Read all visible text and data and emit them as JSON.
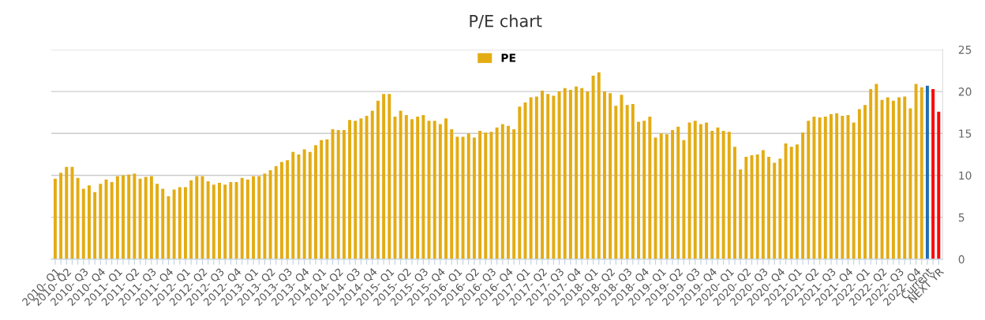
{
  "chart_data": {
    "type": "bar",
    "title": "P/E chart",
    "categories": [
      "2010- Q1",
      null,
      "2010- Q2",
      null,
      null,
      "2010- Q3",
      null,
      null,
      "2010- Q4",
      null,
      null,
      "2011- Q1",
      null,
      null,
      "2011- Q2",
      null,
      null,
      "2011- Q3",
      null,
      null,
      "2011- Q4",
      null,
      null,
      "2012- Q1",
      null,
      null,
      "2012- Q2",
      null,
      null,
      "2012- Q3",
      null,
      null,
      "2012- Q4",
      null,
      null,
      "2013- Q1",
      null,
      null,
      "2013- Q2",
      null,
      null,
      "2013- Q3",
      null,
      null,
      "2013- Q4",
      null,
      null,
      "2014- Q1",
      null,
      null,
      "2014- Q2",
      null,
      null,
      "2014- Q3",
      null,
      null,
      "2014- Q4",
      null,
      null,
      "2015- Q1",
      null,
      null,
      "2015- Q2",
      null,
      null,
      "2015- Q3",
      null,
      null,
      "2015- Q4",
      null,
      null,
      "2016- Q1",
      null,
      null,
      "2016- Q2",
      null,
      null,
      "2016- Q3",
      null,
      null,
      "2016- Q4",
      null,
      null,
      "2017- Q1",
      null,
      null,
      "2017- Q2",
      null,
      null,
      "2017- Q3",
      null,
      null,
      "2017- Q4",
      null,
      null,
      "2018- Q1",
      null,
      null,
      "2018- Q2",
      null,
      null,
      "2018- Q3",
      null,
      null,
      "2018- Q4",
      null,
      null,
      "2019- Q1",
      null,
      null,
      "2019- Q2",
      null,
      null,
      "2019- Q3",
      null,
      null,
      "2019- Q4",
      null,
      null,
      "2020- Q1",
      null,
      null,
      "2020- Q2",
      null,
      null,
      "2020- Q3",
      null,
      null,
      "2020- Q4",
      null,
      null,
      "2021- Q1",
      null,
      null,
      "2021- Q2",
      null,
      null,
      "2021- Q3",
      null,
      null,
      "2021- Q4",
      null,
      null,
      "2022- Q1",
      null,
      null,
      "2022- Q2",
      null,
      null,
      "2022- Q3",
      null,
      null,
      "2022- Q4",
      null,
      "Current",
      null,
      "NEXT YR"
    ],
    "series": [
      {
        "name": "PE",
        "color": "#e3ac13",
        "values": [
          9.6,
          10.3,
          11.0,
          11.0,
          9.7,
          8.4,
          8.8,
          8.0,
          9.0,
          9.5,
          9.2,
          9.9,
          10.0,
          10.1,
          10.2,
          9.6,
          9.8,
          9.9,
          9.0,
          8.4,
          7.5,
          8.3,
          8.6,
          8.6,
          9.4,
          9.9,
          9.9,
          9.3,
          8.9,
          9.1,
          8.9,
          9.2,
          9.2,
          9.7,
          9.5,
          9.9,
          9.9,
          10.2,
          10.6,
          11.1,
          11.6,
          11.8,
          12.8,
          12.5,
          13.1,
          12.8,
          13.6,
          14.2,
          14.3,
          15.5,
          15.4,
          15.4,
          16.6,
          16.5,
          16.8,
          17.1,
          17.7,
          18.9,
          19.7,
          19.7,
          17.0,
          17.7,
          17.2,
          16.7,
          17.0,
          17.2,
          16.5,
          16.5,
          16.1,
          16.8,
          15.5,
          14.6,
          14.6,
          15.0,
          14.5,
          15.3,
          15.1,
          15.2,
          15.7,
          16.1,
          15.9,
          15.5,
          18.2,
          18.7,
          19.3,
          19.4,
          20.1,
          19.7,
          19.5,
          20.0,
          20.4,
          20.2,
          20.6,
          20.4,
          20.0,
          21.9,
          22.3,
          20.0,
          19.8,
          18.3,
          19.6,
          18.4,
          18.5,
          16.4,
          16.5,
          17.0,
          14.5,
          15.0,
          14.9,
          15.4,
          15.8,
          14.2,
          16.3,
          16.5,
          16.1,
          16.3,
          15.3,
          15.7,
          15.3,
          15.2,
          13.4,
          10.7,
          12.2,
          12.4,
          12.5,
          13.0,
          12.2,
          11.5,
          12.0,
          13.8,
          13.4,
          13.7,
          15.1,
          16.5,
          17.0,
          16.9,
          17.0,
          17.3,
          17.4,
          17.1,
          17.2,
          16.3,
          17.9,
          18.4,
          20.3,
          20.9,
          19.0,
          19.3,
          18.9,
          19.3,
          19.4,
          18.0,
          20.9,
          20.5,
          20.7,
          20.3,
          17.6
        ],
        "colors": [
          "#e3ac13",
          "#e3ac13",
          "#e3ac13",
          "#e3ac13",
          "#e3ac13",
          "#e3ac13",
          "#e3ac13",
          "#e3ac13",
          "#e3ac13",
          "#e3ac13",
          "#e3ac13",
          "#e3ac13",
          "#e3ac13",
          "#e3ac13",
          "#e3ac13",
          "#e3ac13",
          "#e3ac13",
          "#e3ac13",
          "#e3ac13",
          "#e3ac13",
          "#e3ac13",
          "#e3ac13",
          "#e3ac13",
          "#e3ac13",
          "#e3ac13",
          "#e3ac13",
          "#e3ac13",
          "#e3ac13",
          "#e3ac13",
          "#e3ac13",
          "#e3ac13",
          "#e3ac13",
          "#e3ac13",
          "#e3ac13",
          "#e3ac13",
          "#e3ac13",
          "#e3ac13",
          "#e3ac13",
          "#e3ac13",
          "#e3ac13",
          "#e3ac13",
          "#e3ac13",
          "#e3ac13",
          "#e3ac13",
          "#e3ac13",
          "#e3ac13",
          "#e3ac13",
          "#e3ac13",
          "#e3ac13",
          "#e3ac13",
          "#e3ac13",
          "#e3ac13",
          "#e3ac13",
          "#e3ac13",
          "#e3ac13",
          "#e3ac13",
          "#e3ac13",
          "#e3ac13",
          "#e3ac13",
          "#e3ac13",
          "#e3ac13",
          "#e3ac13",
          "#e3ac13",
          "#e3ac13",
          "#e3ac13",
          "#e3ac13",
          "#e3ac13",
          "#e3ac13",
          "#e3ac13",
          "#e3ac13",
          "#e3ac13",
          "#e3ac13",
          "#e3ac13",
          "#e3ac13",
          "#e3ac13",
          "#e3ac13",
          "#e3ac13",
          "#e3ac13",
          "#e3ac13",
          "#e3ac13",
          "#e3ac13",
          "#e3ac13",
          "#e3ac13",
          "#e3ac13",
          "#e3ac13",
          "#e3ac13",
          "#e3ac13",
          "#e3ac13",
          "#e3ac13",
          "#e3ac13",
          "#e3ac13",
          "#e3ac13",
          "#e3ac13",
          "#e3ac13",
          "#e3ac13",
          "#e3ac13",
          "#e3ac13",
          "#e3ac13",
          "#e3ac13",
          "#e3ac13",
          "#e3ac13",
          "#e3ac13",
          "#e3ac13",
          "#e3ac13",
          "#e3ac13",
          "#e3ac13",
          "#e3ac13",
          "#e3ac13",
          "#e3ac13",
          "#e3ac13",
          "#e3ac13",
          "#e3ac13",
          "#e3ac13",
          "#e3ac13",
          "#e3ac13",
          "#e3ac13",
          "#e3ac13",
          "#e3ac13",
          "#e3ac13",
          "#e3ac13",
          "#e3ac13",
          "#e3ac13",
          "#e3ac13",
          "#e3ac13",
          "#e3ac13",
          "#e3ac13",
          "#e3ac13",
          "#e3ac13",
          "#e3ac13",
          "#e3ac13",
          "#e3ac13",
          "#e3ac13",
          "#e3ac13",
          "#e3ac13",
          "#e3ac13",
          "#e3ac13",
          "#e3ac13",
          "#e3ac13",
          "#e3ac13",
          "#e3ac13",
          "#e3ac13",
          "#e3ac13",
          "#e3ac13",
          "#e3ac13",
          "#e3ac13",
          "#e3ac13",
          "#e3ac13",
          "#e3ac13",
          "#e3ac13",
          "#e3ac13",
          "#e3ac13",
          "#e3ac13",
          "#e3ac13",
          "#e3ac13",
          "#1f6fb2",
          "#ff0000",
          "#ff0000"
        ]
      }
    ],
    "ylim": [
      0,
      25
    ],
    "yticks": [
      0,
      5,
      10,
      15,
      20,
      25
    ],
    "grid": "y",
    "legend": "top"
  }
}
